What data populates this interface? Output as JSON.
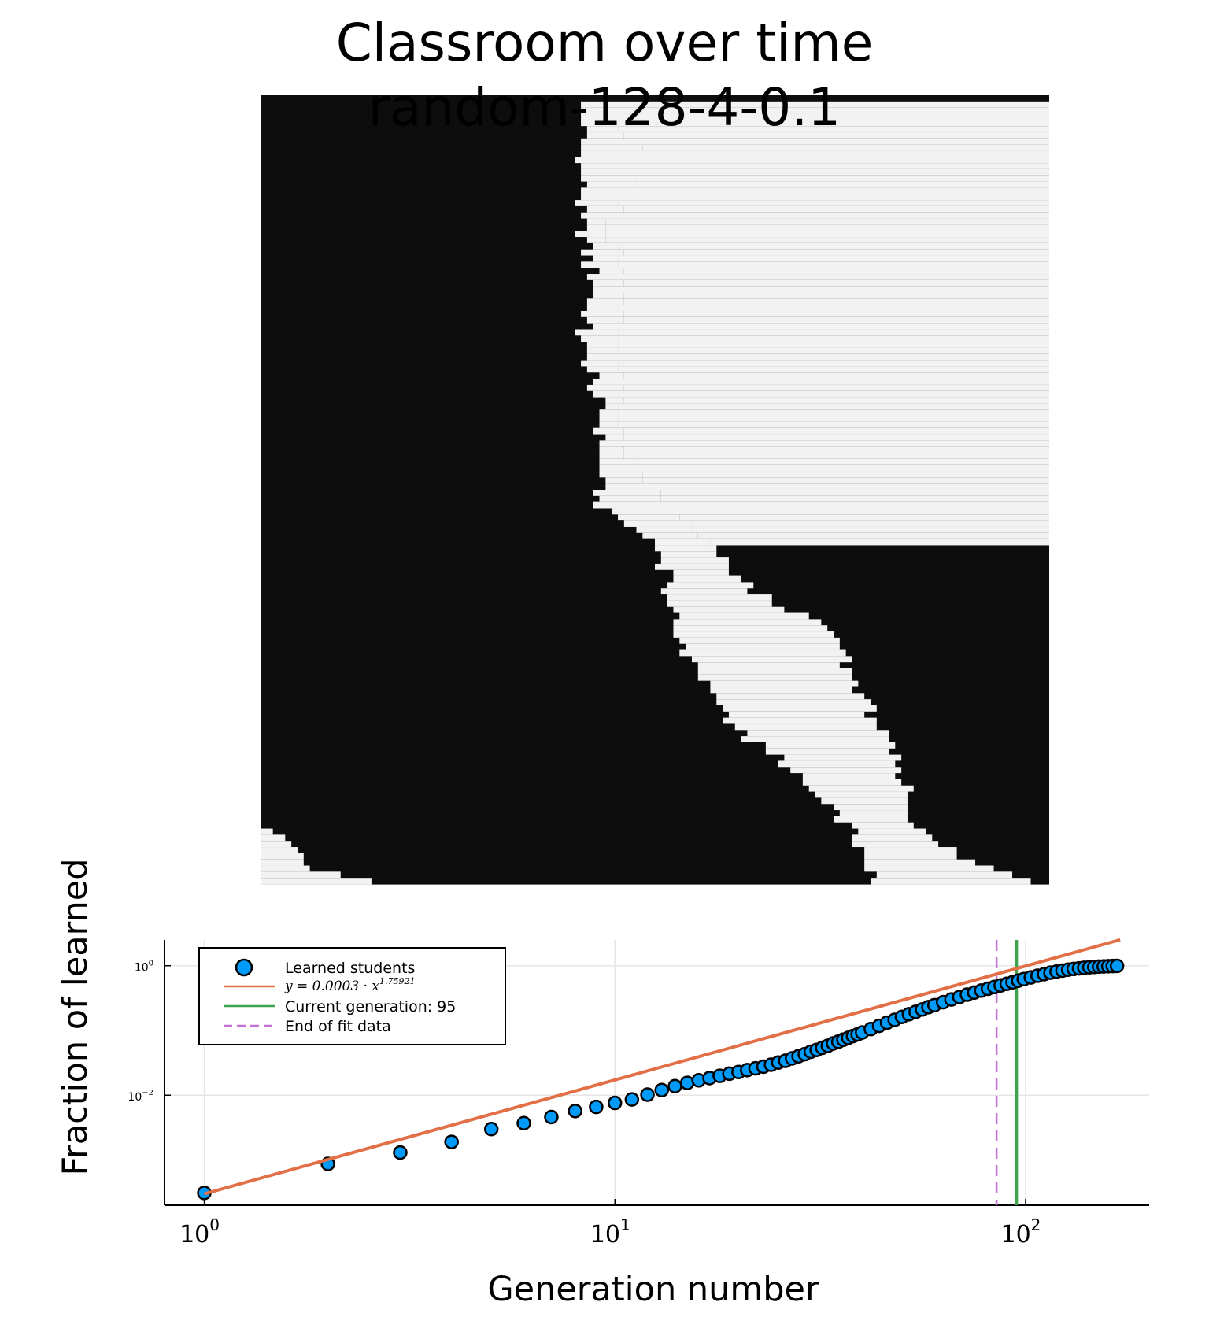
{
  "figure": {
    "title_line1": "Classroom over time",
    "title_line2": "random-128-4-0.1"
  },
  "heatmap": {
    "type": "heatmap",
    "grid_size": 128,
    "colors": {
      "learned": "#f2f2f2",
      "unlearned": "#0d0d0d"
    },
    "boundary_rows": [
      [
        0,
        52,
        52,
        128
      ],
      [
        10,
        52,
        64,
        70
      ],
      [
        20,
        52,
        56,
        72
      ],
      [
        30,
        54,
        60,
        70
      ],
      [
        40,
        52,
        58,
        73
      ],
      [
        50,
        55,
        58,
        77
      ],
      [
        60,
        55,
        60,
        77
      ],
      [
        66,
        55,
        66,
        92
      ],
      [
        73,
        65,
        73,
        128
      ],
      [
        80,
        66,
        80,
        128
      ],
      [
        86,
        67,
        92,
        128
      ],
      [
        92,
        70,
        95,
        128
      ],
      [
        98,
        74,
        98,
        128
      ],
      [
        103,
        78,
        101,
        128
      ],
      [
        108,
        85,
        103,
        128
      ],
      [
        113,
        90,
        105,
        128
      ],
      [
        118,
        95,
        106,
        128
      ],
      [
        123,
        98,
        113,
        128
      ],
      [
        128,
        99,
        128,
        128
      ]
    ],
    "bottom_left_learned_rows": [
      [
        118,
        0,
        0
      ],
      [
        119,
        0,
        2
      ],
      [
        120,
        0,
        4
      ],
      [
        121,
        0,
        5
      ],
      [
        122,
        0,
        6
      ],
      [
        123,
        0,
        7
      ],
      [
        124,
        0,
        7
      ],
      [
        125,
        0,
        8
      ],
      [
        126,
        0,
        13
      ],
      [
        127,
        0,
        18
      ]
    ]
  },
  "chart_data": {
    "type": "scatter",
    "xlabel": "Generation number",
    "ylabel": "Fraction of learned",
    "xscale": "log",
    "yscale": "log",
    "xlim": [
      0.8,
      200
    ],
    "ylim": [
      0.0002,
      2.5
    ],
    "x_ticks": [
      {
        "value": 1,
        "base": "10",
        "exp": "0"
      },
      {
        "value": 10,
        "base": "10",
        "exp": "1"
      },
      {
        "value": 100,
        "base": "10",
        "exp": "2"
      }
    ],
    "y_ticks": [
      {
        "value": 1,
        "base": "10",
        "exp": "0"
      },
      {
        "value": 0.01,
        "base": "10",
        "exp": "−2"
      }
    ],
    "grid": true,
    "legend_position": "top-left",
    "series": [
      {
        "name": "Learned students",
        "kind": "scatter",
        "color": "#009af9",
        "x": [
          1,
          2,
          3,
          4,
          5,
          6,
          7,
          8,
          9,
          10,
          11,
          12,
          13,
          14,
          15,
          16,
          17,
          18,
          19,
          20,
          21,
          22,
          23,
          24,
          25,
          26,
          27,
          28,
          29,
          30,
          31,
          32,
          33,
          34,
          35,
          36,
          37,
          38,
          39,
          40,
          42,
          44,
          46,
          48,
          50,
          52,
          54,
          56,
          58,
          60,
          63,
          66,
          69,
          72,
          75,
          78,
          81,
          84,
          87,
          90,
          93,
          96,
          99,
          103,
          107,
          111,
          115,
          119,
          123,
          127,
          131,
          135,
          139,
          143,
          147,
          151,
          155,
          159,
          163,
          167
        ],
        "y": [
          0.00031,
          0.00087,
          0.0013,
          0.0019,
          0.003,
          0.0037,
          0.0046,
          0.0057,
          0.0066,
          0.0076,
          0.0086,
          0.0102,
          0.012,
          0.0138,
          0.0155,
          0.017,
          0.0184,
          0.0199,
          0.0215,
          0.0228,
          0.0244,
          0.026,
          0.0276,
          0.0296,
          0.032,
          0.034,
          0.037,
          0.04,
          0.043,
          0.047,
          0.05,
          0.054,
          0.058,
          0.063,
          0.067,
          0.072,
          0.077,
          0.082,
          0.087,
          0.093,
          0.105,
          0.118,
          0.132,
          0.146,
          0.162,
          0.178,
          0.194,
          0.211,
          0.229,
          0.246,
          0.273,
          0.301,
          0.329,
          0.357,
          0.385,
          0.413,
          0.441,
          0.469,
          0.497,
          0.525,
          0.556,
          0.588,
          0.62,
          0.66,
          0.7,
          0.74,
          0.78,
          0.81,
          0.84,
          0.87,
          0.89,
          0.91,
          0.93,
          0.945,
          0.957,
          0.967,
          0.975,
          0.982,
          0.988,
          0.993
        ]
      },
      {
        "name": "y = 0.0003 · x^1.75921",
        "kind": "fit",
        "color": "#e26f46",
        "coef": 0.0003,
        "power": 1.75921,
        "x_range": [
          1,
          170
        ]
      },
      {
        "name": "Current generation: 95",
        "kind": "vline",
        "color": "#3da44d",
        "x": 95
      },
      {
        "name": "End of fit data",
        "kind": "vline-dashed",
        "color": "#c271d2",
        "x": 85
      }
    ],
    "legend": {
      "fit_prefix": "y = 0.0003 · x",
      "fit_exponent": "1.75921"
    }
  }
}
